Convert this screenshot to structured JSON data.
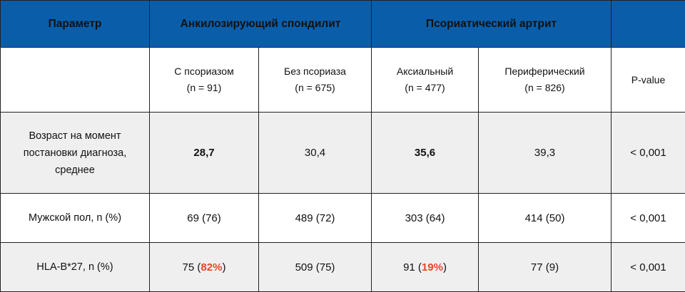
{
  "header": {
    "param": "Параметр",
    "as": "Анкилозирующий спондилит",
    "psa": "Псориатический артрит",
    "empty": ""
  },
  "subheader": {
    "col1_line1": "С псориазом",
    "col1_line2": "(n = 91)",
    "col2_line1": "Без псориаза",
    "col2_line2": "(n = 675)",
    "col3_line1": "Аксиальный",
    "col3_line2": "(n = 477)",
    "col4_line1": "Периферический",
    "col4_line2": "(n = 826)",
    "pvalue": "P-value"
  },
  "rows": {
    "age": {
      "label_line1": "Возраст на момент",
      "label_line2": "постановки диагноза,",
      "label_line3": "среднее",
      "c1": "28,7",
      "c2": "30,4",
      "c3": "35,6",
      "c4": "39,3",
      "p": "< 0,001"
    },
    "male": {
      "label": "Мужской пол, n (%)",
      "c1": "69 (76)",
      "c2": "489 (72)",
      "c3": "303 (64)",
      "c4": "414 (50)",
      "p": "< 0,001"
    },
    "hla": {
      "label": "HLA-B*27, n (%)",
      "c1_num": "75 (",
      "c1_pct": "82%",
      "c1_close": ")",
      "c2": "509 (75)",
      "c3_num": "91 (",
      "c3_pct": "19%",
      "c3_close": ")",
      "c4": "77 (9)",
      "p": "< 0,001"
    }
  },
  "colors": {
    "header_bg": "#0a5ea9",
    "highlight": "#e8452b",
    "stripe": "#efefef"
  }
}
